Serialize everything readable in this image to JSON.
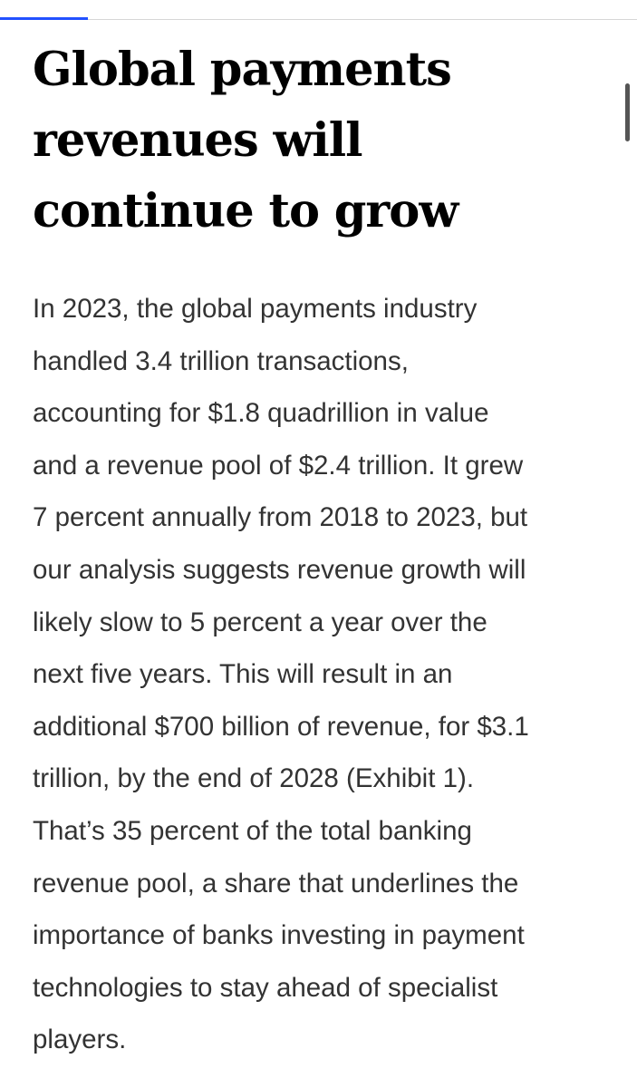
{
  "article": {
    "headline_lines": [
      "Global payments",
      "revenues will",
      "continue to grow"
    ],
    "body_lines": [
      "In 2023, the global payments industry",
      "handled 3.4 trillion transactions,",
      "accounting for $1.8 quadrillion in value",
      "and a revenue pool of $2.4 trillion. It grew",
      "7 percent annually from 2018 to 2023, but",
      "our analysis suggests revenue growth will",
      "likely slow to 5 percent a year over the",
      "next five years. This will result in an",
      "additional $700 billion of revenue, for $3.1",
      "trillion, by the end of 2028 (Exhibit 1).",
      "That’s 35 percent of the total banking",
      "revenue pool, a share that underlines the",
      "importance of banks investing in payment",
      "technologies to stay ahead of specialist",
      "players."
    ]
  },
  "colors": {
    "accent": "#2251ff",
    "headline": "#000000",
    "body": "#333333",
    "rule": "#d6d6d6",
    "scrollbar": "#555555"
  }
}
